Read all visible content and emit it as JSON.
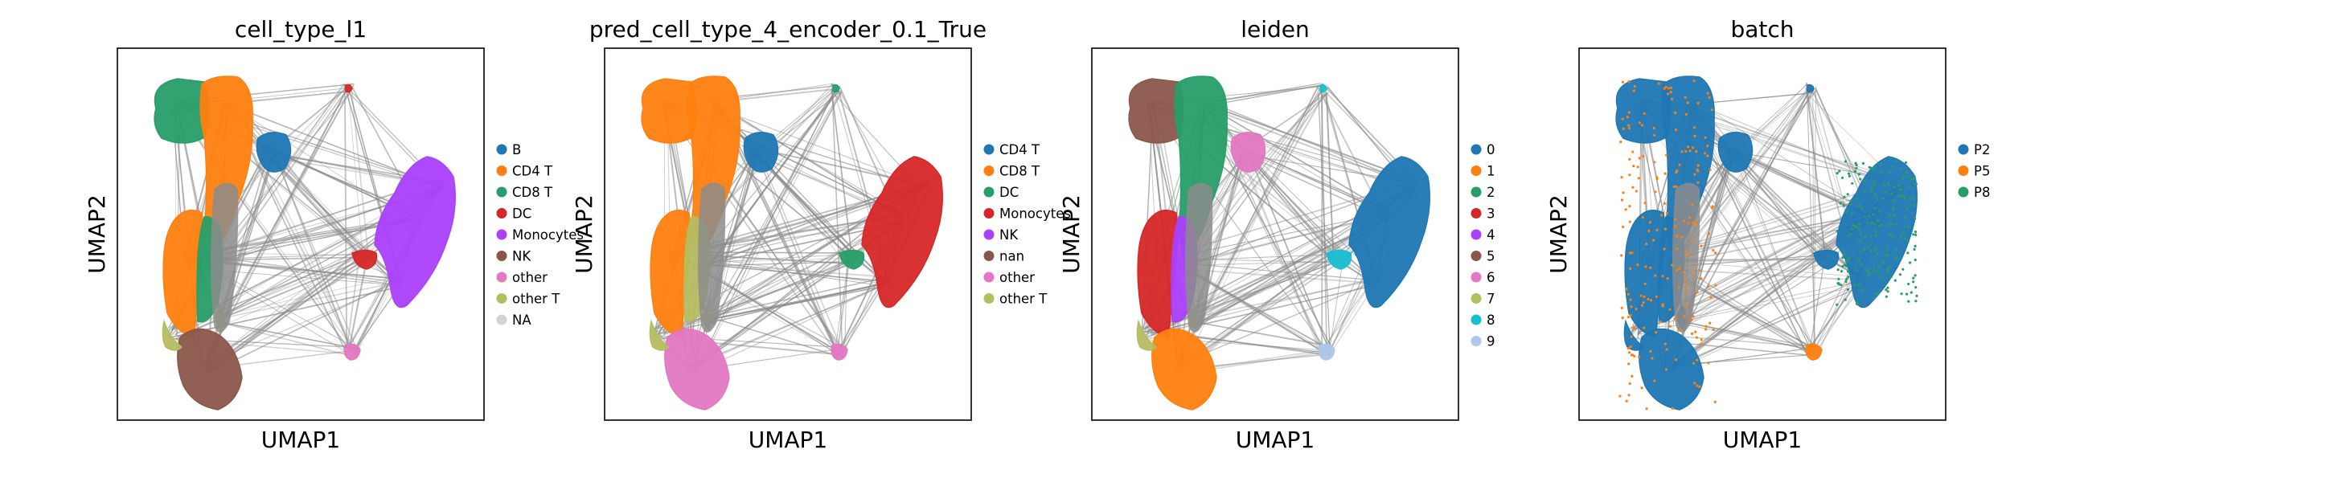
{
  "chart_data": [
    {
      "type": "scatter",
      "title": "cell_type_l1",
      "xlabel": "UMAP1",
      "ylabel": "UMAP2",
      "legend_position": "right",
      "grid": false,
      "categories": [
        "B",
        "CD4 T",
        "CD8 T",
        "DC",
        "Monocytes",
        "NK",
        "other",
        "other T",
        "NA"
      ],
      "colors": [
        "#1f77b4",
        "#ff7f0e",
        "#279e68",
        "#d62728",
        "#aa40fc",
        "#8c564b",
        "#e377c2",
        "#b5bd61",
        "#d3d3d3"
      ],
      "regions": {
        "left_arm": "CD4 T",
        "right_arm": "CD8 T",
        "left_upper": "CD8 T",
        "upper_blob": "CD4 T",
        "top_knob": "B",
        "bottom_blob": "NK",
        "right_lobe": "Monocytes",
        "right_neck": "DC",
        "far_dot": "DC",
        "small_bottom": "other",
        "hooks": "other T"
      }
    },
    {
      "type": "scatter",
      "title": "pred_cell_type_4_encoder_0.1_True",
      "xlabel": "UMAP1",
      "ylabel": "UMAP2",
      "legend_position": "right",
      "grid": false,
      "categories": [
        "CD4 T",
        "CD8 T",
        "DC",
        "Monocytes",
        "NK",
        "nan",
        "other",
        "other T"
      ],
      "colors": [
        "#1f77b4",
        "#ff7f0e",
        "#279e68",
        "#d62728",
        "#aa40fc",
        "#8c564b",
        "#e377c2",
        "#b5bd61"
      ],
      "regions": {
        "left_arm": "CD8 T",
        "right_arm": "other T",
        "left_upper": "CD8 T",
        "upper_blob": "CD8 T",
        "top_knob": "CD4 T",
        "bottom_blob": "other",
        "right_lobe": "Monocytes",
        "right_neck": "DC",
        "far_dot": "DC",
        "small_bottom": "other",
        "hooks": "other T"
      }
    },
    {
      "type": "scatter",
      "title": "leiden",
      "xlabel": "UMAP1",
      "ylabel": "UMAP2",
      "legend_position": "right",
      "grid": false,
      "categories": [
        "0",
        "1",
        "2",
        "3",
        "4",
        "5",
        "6",
        "7",
        "8",
        "9"
      ],
      "colors": [
        "#1f77b4",
        "#ff7f0e",
        "#279e68",
        "#d62728",
        "#aa40fc",
        "#8c564b",
        "#e377c2",
        "#b5bd61",
        "#17becf",
        "#aec7e8"
      ],
      "regions": {
        "left_arm": "3",
        "right_arm": "4",
        "left_upper": "5",
        "upper_blob": "2",
        "top_knob": "6",
        "bottom_blob": "1",
        "right_lobe": "0",
        "right_neck": "8",
        "far_dot": "8",
        "small_bottom": "9",
        "hooks": "7"
      }
    },
    {
      "type": "scatter",
      "title": "batch",
      "xlabel": "UMAP1",
      "ylabel": "UMAP2",
      "legend_position": "right",
      "grid": false,
      "categories": [
        "P2",
        "P5",
        "P8"
      ],
      "colors": [
        "#1f77b4",
        "#ff7f0e",
        "#279e68"
      ],
      "regions": {
        "left_arm": "P2",
        "right_arm": "P2",
        "left_upper": "P2",
        "upper_blob": "P2",
        "top_knob": "P2",
        "bottom_blob": "P2",
        "right_lobe": "P2",
        "right_neck": "P2",
        "far_dot": "P2",
        "small_bottom": "P5",
        "hooks": "P2"
      },
      "speckle": [
        "P5",
        "P8"
      ]
    }
  ]
}
